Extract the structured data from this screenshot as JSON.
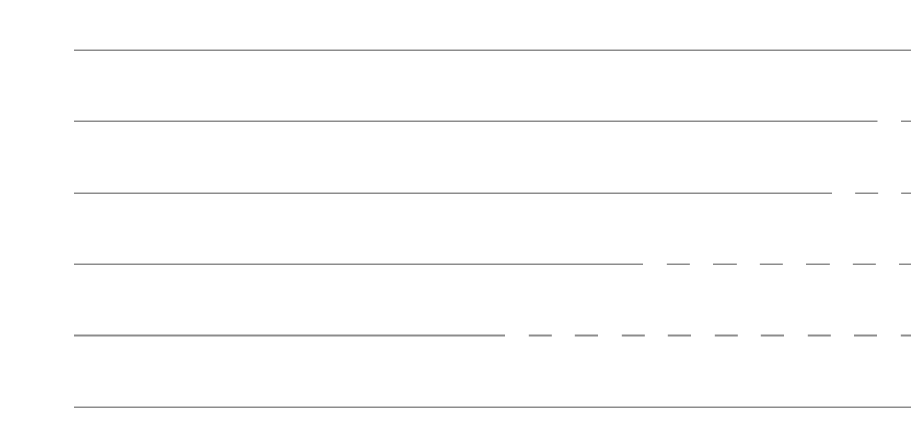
{
  "chart_data": {
    "type": "line",
    "title": "",
    "xlabel": "",
    "ylabel": "",
    "grid": false,
    "legend": "none",
    "colors": {
      "line": "#8c8c8c",
      "background": "#ffffff"
    },
    "lines": [
      {
        "style": "solid",
        "solid_fraction": 1.0
      },
      {
        "style": "solid-then-dashed",
        "solid_fraction": 0.96
      },
      {
        "style": "solid-then-dashed",
        "solid_fraction": 0.905
      },
      {
        "style": "solid-then-dashed",
        "solid_fraction": 0.68
      },
      {
        "style": "solid-then-dashed",
        "solid_fraction": 0.515
      },
      {
        "style": "solid",
        "solid_fraction": 1.0
      }
    ]
  }
}
